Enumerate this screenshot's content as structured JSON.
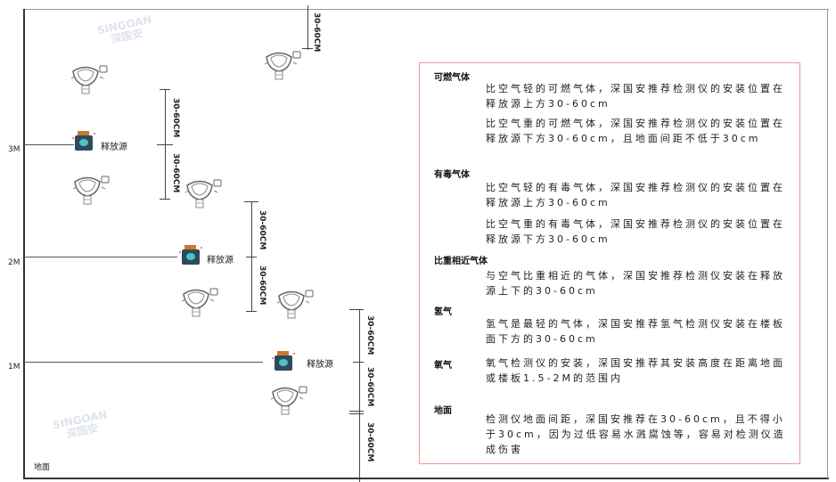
{
  "levels": [
    "3M",
    "2M",
    "1M"
  ],
  "ground_label": "地面",
  "source_label": "释放源",
  "dimension_label": "30-60CM",
  "watermark": {
    "brand": "SINGOAN",
    "cn": "深国安"
  },
  "colors": {
    "box_border": "#ec9a9a",
    "source_body": "#2e4a5c",
    "source_cap": "#c97a2a",
    "source_face": "#4fc3c3"
  },
  "notes": [
    {
      "heading": "可燃气体",
      "paragraphs": [
        "比空气轻的可燃气体，深国安推荐检测仪的安装位置在释放源上方30-60cm",
        "比空气重的可燃气体，深国安推荐检测仪的安装位置在释放源下方30-60cm，且地面间距不低于30cm"
      ]
    },
    {
      "heading": "有毒气体",
      "paragraphs": [
        "比空气轻的有毒气体，深国安推荐检测仪的安装位置在释放源上方30-60cm",
        "比空气重的有毒气体，深国安推荐检测仪的安装位置在释放源下方30-60cm"
      ]
    },
    {
      "heading": "比重相近气体",
      "paragraphs": [
        "与空气比重相近的气体，深国安推荐检测仪安装在释放源上下的30-60cm"
      ]
    },
    {
      "heading": "氢气",
      "paragraphs": [
        "氢气是最轻的气体，深国安推荐氢气检测仪安装在楼板面下方的30-60cm"
      ]
    },
    {
      "heading": "氧气",
      "paragraphs": [
        "氧气检测仪的安装，深国安推荐其安装高度在距离地面或楼板1.5-2M的范围内"
      ]
    },
    {
      "heading": "地面",
      "paragraphs": [
        "检测仪地面间距，深国安推荐在30-60cm，且不得小于30cm，因为过低容易水溅腐蚀等，容易对检测仪造成伤害"
      ]
    }
  ]
}
